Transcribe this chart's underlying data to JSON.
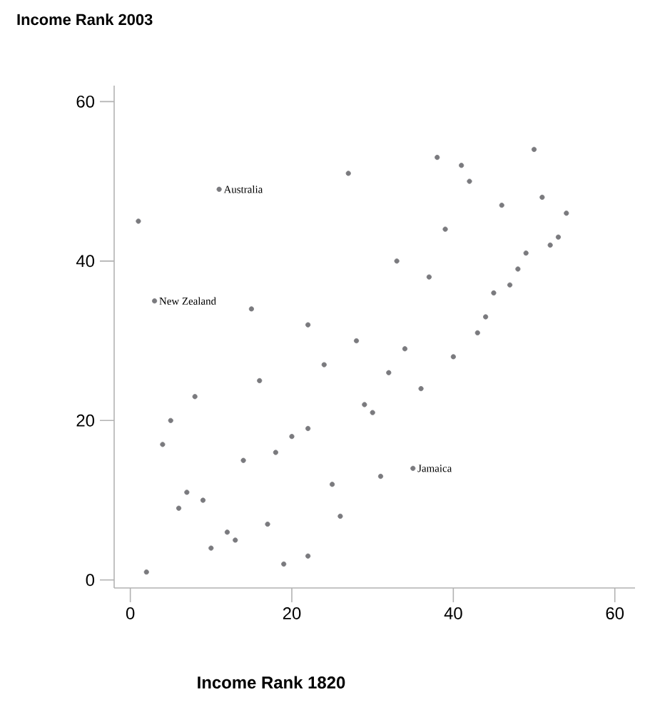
{
  "chart_data": {
    "type": "scatter",
    "ylabel": "Income Rank 2003",
    "xlabel": "Income Rank 1820",
    "x": [
      1,
      11,
      3,
      15,
      22,
      28,
      27,
      38,
      41,
      42,
      50,
      46,
      51,
      54,
      39,
      33,
      37,
      53,
      52,
      49,
      48,
      47,
      45,
      44,
      43,
      34,
      40,
      24,
      16,
      8,
      5,
      4,
      29,
      22,
      20,
      18,
      14,
      7,
      6,
      9,
      25,
      26,
      17,
      12,
      13,
      10,
      19,
      22,
      2,
      32,
      36,
      30,
      35,
      31
    ],
    "values": [
      45,
      49,
      35,
      34,
      32,
      30,
      51,
      53,
      52,
      50,
      54,
      47,
      48,
      46,
      44,
      40,
      38,
      43,
      42,
      41,
      39,
      37,
      36,
      33,
      31,
      29,
      28,
      27,
      25,
      23,
      20,
      17,
      22,
      19,
      18,
      16,
      15,
      11,
      9,
      10,
      12,
      8,
      7,
      6,
      5,
      4,
      2,
      3,
      1,
      26,
      24,
      21,
      14,
      13
    ],
    "color": "#7a7a7e",
    "marker": "circle",
    "xlim": [
      -2,
      62.5
    ],
    "ylim": [
      -1,
      62
    ],
    "xticks": [
      0,
      20,
      40,
      60
    ],
    "yticks": [
      0,
      20,
      40,
      60
    ],
    "annotations": [
      {
        "text": "Australia",
        "x": 11,
        "y": 49
      },
      {
        "text": "New Zealand",
        "x": 3,
        "y": 35
      },
      {
        "text": "Jamaica",
        "x": 35,
        "y": 14
      }
    ]
  }
}
